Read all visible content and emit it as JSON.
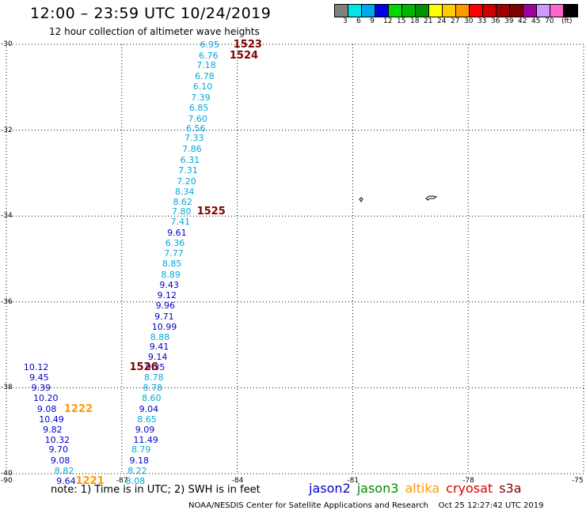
{
  "header": {
    "title": "12:00 – 23:59 UTC 10/24/2019",
    "subtitle": "12 hour collection of altimeter wave heights"
  },
  "colorbar": {
    "colors": [
      "#808080",
      "#00e6e6",
      "#00a8f0",
      "#0000e6",
      "#00d800",
      "#00b800",
      "#009000",
      "#ffff00",
      "#ffcc00",
      "#ff9900",
      "#ff0000",
      "#d00000",
      "#a00000",
      "#800000",
      "#a000a0",
      "#cc99ff",
      "#ff66cc",
      "#000000"
    ],
    "labels": [
      "3",
      "6",
      "9",
      "12",
      "15",
      "18",
      "21",
      "24",
      "27",
      "30",
      "33",
      "36",
      "39",
      "42",
      "45",
      "70",
      "(ft)"
    ]
  },
  "axes": {
    "lat_labels": [
      "-30",
      "-32",
      "-34",
      "-36",
      "-38",
      "-40"
    ],
    "lon_labels": [
      "-90",
      "-87",
      "-84",
      "-81",
      "-78",
      "-75"
    ]
  },
  "measurements": [
    {
      "v": "6.95",
      "c": "#00a8d8",
      "lon": -84.97,
      "lat": -30.02
    },
    {
      "v": "6.76",
      "c": "#00a8d8",
      "lon": -85.0,
      "lat": -30.27
    },
    {
      "v": "7.18",
      "c": "#00a8d8",
      "lon": -85.06,
      "lat": -30.5
    },
    {
      "v": "6.78",
      "c": "#00a8d8",
      "lon": -85.1,
      "lat": -30.75
    },
    {
      "v": "6.10",
      "c": "#00a8d8",
      "lon": -85.15,
      "lat": -31.0
    },
    {
      "v": "7.39",
      "c": "#00a8d8",
      "lon": -85.2,
      "lat": -31.25
    },
    {
      "v": "6.85",
      "c": "#00a8d8",
      "lon": -85.25,
      "lat": -31.5
    },
    {
      "v": "7.60",
      "c": "#00a8d8",
      "lon": -85.28,
      "lat": -31.75
    },
    {
      "v": "6.56",
      "c": "#00a8d8",
      "lon": -85.33,
      "lat": -31.97
    },
    {
      "v": "7.33",
      "c": "#00a8d8",
      "lon": -85.37,
      "lat": -32.2
    },
    {
      "v": "7.86",
      "c": "#00a8d8",
      "lon": -85.43,
      "lat": -32.45
    },
    {
      "v": "6.31",
      "c": "#00a8d8",
      "lon": -85.48,
      "lat": -32.7
    },
    {
      "v": "7.31",
      "c": "#00a8d8",
      "lon": -85.53,
      "lat": -32.95
    },
    {
      "v": "7.20",
      "c": "#00a8d8",
      "lon": -85.57,
      "lat": -33.2
    },
    {
      "v": "8.34",
      "c": "#00a8d8",
      "lon": -85.62,
      "lat": -33.45
    },
    {
      "v": "8.62",
      "c": "#00a8d8",
      "lon": -85.67,
      "lat": -33.68
    },
    {
      "v": "7.80",
      "c": "#00a8d8",
      "lon": -85.7,
      "lat": -33.91
    },
    {
      "v": "7.41",
      "c": "#00a8d8",
      "lon": -85.73,
      "lat": -34.14
    },
    {
      "v": "9.61",
      "c": "#0000cc",
      "lon": -85.82,
      "lat": -34.4
    },
    {
      "v": "6.36",
      "c": "#00a8d8",
      "lon": -85.87,
      "lat": -34.65
    },
    {
      "v": "7.77",
      "c": "#00a8d8",
      "lon": -85.9,
      "lat": -34.88
    },
    {
      "v": "8.85",
      "c": "#00a8d8",
      "lon": -85.95,
      "lat": -35.12
    },
    {
      "v": "8.89",
      "c": "#00a8d8",
      "lon": -85.98,
      "lat": -35.37
    },
    {
      "v": "9.43",
      "c": "#0000cc",
      "lon": -86.02,
      "lat": -35.62
    },
    {
      "v": "9.12",
      "c": "#0000cc",
      "lon": -86.08,
      "lat": -35.86
    },
    {
      "v": "9.96",
      "c": "#0000cc",
      "lon": -86.12,
      "lat": -36.1
    },
    {
      "v": "9.71",
      "c": "#0000cc",
      "lon": -86.15,
      "lat": -36.35
    },
    {
      "v": "10.99",
      "c": "#0000cc",
      "lon": -86.22,
      "lat": -36.6
    },
    {
      "v": "8.88",
      "c": "#00a8d8",
      "lon": -86.26,
      "lat": -36.83
    },
    {
      "v": "9.41",
      "c": "#0000cc",
      "lon": -86.28,
      "lat": -37.06
    },
    {
      "v": "9.14",
      "c": "#0000cc",
      "lon": -86.32,
      "lat": -37.3
    },
    {
      "v": "9.35",
      "c": "#0000cc",
      "lon": -86.38,
      "lat": -37.54
    },
    {
      "v": "8.78",
      "c": "#00a8d8",
      "lon": -86.42,
      "lat": -37.78
    },
    {
      "v": "8.78",
      "c": "#00a8d8",
      "lon": -86.45,
      "lat": -38.02
    },
    {
      "v": "8.60",
      "c": "#00a8d8",
      "lon": -86.48,
      "lat": -38.25
    },
    {
      "v": "9.04",
      "c": "#0000cc",
      "lon": -86.55,
      "lat": -38.5
    },
    {
      "v": "8.65",
      "c": "#00a8d8",
      "lon": -86.6,
      "lat": -38.75
    },
    {
      "v": "9.09",
      "c": "#0000cc",
      "lon": -86.65,
      "lat": -38.98
    },
    {
      "v": "11.49",
      "c": "#0000cc",
      "lon": -86.7,
      "lat": -39.22
    },
    {
      "v": "8.79",
      "c": "#00a8d8",
      "lon": -86.75,
      "lat": -39.45
    },
    {
      "v": "9.18",
      "c": "#0000cc",
      "lon": -86.8,
      "lat": -39.7
    },
    {
      "v": "8.22",
      "c": "#00a8d8",
      "lon": -86.85,
      "lat": -39.95
    },
    {
      "v": "8.08",
      "c": "#00a8d8",
      "lon": -86.9,
      "lat": -40.18
    },
    {
      "v": "10.12",
      "c": "#0000cc",
      "lon": -89.55,
      "lat": -37.54
    },
    {
      "v": "9.45",
      "c": "#0000cc",
      "lon": -89.4,
      "lat": -37.78
    },
    {
      "v": "9.39",
      "c": "#0000cc",
      "lon": -89.35,
      "lat": -38.02
    },
    {
      "v": "10.20",
      "c": "#0000cc",
      "lon": -89.3,
      "lat": -38.25
    },
    {
      "v": "9.08",
      "c": "#0000cc",
      "lon": -89.2,
      "lat": -38.5
    },
    {
      "v": "10.49",
      "c": "#0000cc",
      "lon": -89.15,
      "lat": -38.75
    },
    {
      "v": "9.82",
      "c": "#0000cc",
      "lon": -89.05,
      "lat": -38.98
    },
    {
      "v": "10.32",
      "c": "#0000cc",
      "lon": -89.0,
      "lat": -39.22
    },
    {
      "v": "9.70",
      "c": "#0000cc",
      "lon": -88.9,
      "lat": -39.45
    },
    {
      "v": "9.08",
      "c": "#0000cc",
      "lon": -88.85,
      "lat": -39.7
    },
    {
      "v": "8.82",
      "c": "#00a8d8",
      "lon": -88.75,
      "lat": -39.95
    },
    {
      "v": "9.64",
      "c": "#0000cc",
      "lon": -88.7,
      "lat": -40.18
    }
  ],
  "passes": [
    {
      "label": "1523",
      "c": "#800000",
      "lon": -84.1,
      "lat": -30.02
    },
    {
      "label": "1524",
      "c": "#800000",
      "lon": -84.2,
      "lat": -30.27
    },
    {
      "label": "1525",
      "c": "#800000",
      "lon": -85.05,
      "lat": -33.91
    },
    {
      "label": "1526",
      "c": "#800000",
      "lon": -86.8,
      "lat": -37.54
    },
    {
      "label": "1222",
      "c": "#ff9900",
      "lon": -88.5,
      "lat": -38.5
    },
    {
      "label": "1221",
      "c": "#ff9900",
      "lon": -88.2,
      "lat": -40.18
    }
  ],
  "note": "note:  1) Time is in UTC; 2) SWH is in feet",
  "missions": [
    {
      "name": "jason2",
      "c": "#0000cc"
    },
    {
      "name": "jason3",
      "c": "#008800"
    },
    {
      "name": "altika",
      "c": "#ff9900"
    },
    {
      "name": "cryosat",
      "c": "#dd0000"
    },
    {
      "name": "s3a",
      "c": "#800000"
    }
  ],
  "footer": {
    "credit": "NOAA/NESDIS Center for Satellite Applications and Research",
    "timestamp": "Oct 25 12:27:42 UTC 2019"
  }
}
